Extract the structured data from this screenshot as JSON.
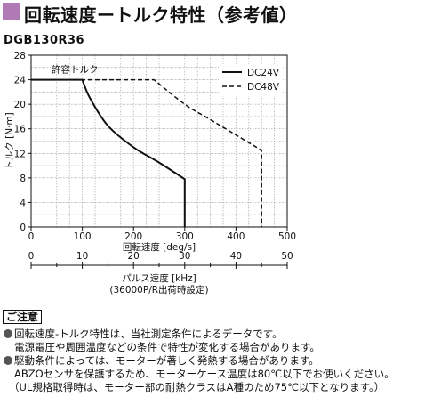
{
  "header": {
    "title": "回転速度ートルク特性（参考値）",
    "accent_color": "#b07ab6"
  },
  "model": "DGB130R36",
  "chart_data": {
    "type": "line",
    "ylabel": "トルク [N·m]",
    "xlabel": "回転速度 [deg/s]",
    "x2label": "パルス速度 [kHz]",
    "x2sublabel": "(36000P/R出荷時設定)",
    "xlim": [
      0,
      500
    ],
    "ylim": [
      0,
      28
    ],
    "x2lim": [
      0,
      50
    ],
    "xticks": [
      "0",
      "100",
      "200",
      "300",
      "400",
      "500"
    ],
    "yticks": [
      "0",
      "4",
      "8",
      "12",
      "16",
      "20",
      "24",
      "28"
    ],
    "x2ticks": [
      "0",
      "10",
      "20",
      "30",
      "40",
      "50"
    ],
    "grid": true,
    "annotation": "許容トルク",
    "legend_position": "top-right",
    "series": [
      {
        "name": "DC24V",
        "style": "solid",
        "x": [
          0,
          100,
          115,
          150,
          200,
          250,
          300,
          300
        ],
        "y": [
          24,
          24,
          21,
          16.5,
          13,
          10.5,
          7.8,
          0
        ]
      },
      {
        "name": "DC48V",
        "style": "dashed",
        "x": [
          0,
          240,
          300,
          350,
          400,
          450,
          450
        ],
        "y": [
          24,
          24,
          20,
          17.5,
          15,
          12.5,
          0
        ]
      }
    ]
  },
  "notes": {
    "heading": "ご注意",
    "lines": [
      "回転速度-トルク特性は、当社測定条件によるデータです。",
      "電源電圧や周囲温度などの条件で特性が変化する場合があります。",
      "駆動条件によっては、モーターが著しく発熱する場合があります。",
      "ABZOセンサを保護するため、モーターケース温度は80℃以下でお使いください。",
      "（UL規格取得時は、モーター部の耐熱クラスはA種のため75℃以下となります。）"
    ]
  }
}
